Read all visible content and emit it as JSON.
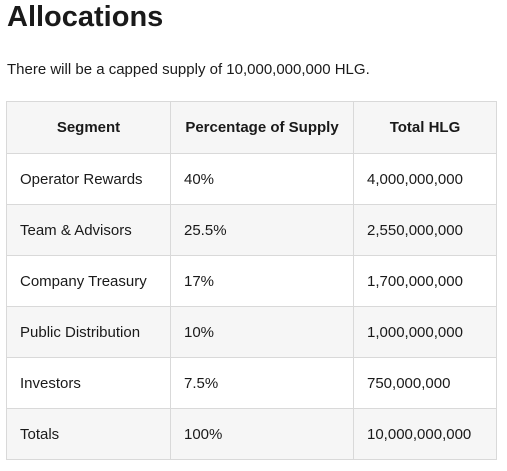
{
  "title": "Allocations",
  "intro": "There will be a capped supply of 10,000,000,000 HLG.",
  "table": {
    "headers": [
      "Segment",
      "Percentage of Supply",
      "Total HLG"
    ],
    "rows": [
      [
        "Operator Rewards",
        "40%",
        "4,000,000,000"
      ],
      [
        "Team & Advisors",
        "25.5%",
        "2,550,000,000"
      ],
      [
        "Company Treasury",
        "17%",
        "1,700,000,000"
      ],
      [
        "Public Distribution",
        "10%",
        "1,000,000,000"
      ],
      [
        "Investors",
        "7.5%",
        "750,000,000"
      ],
      [
        "Totals",
        "100%",
        "10,000,000,000"
      ]
    ]
  }
}
